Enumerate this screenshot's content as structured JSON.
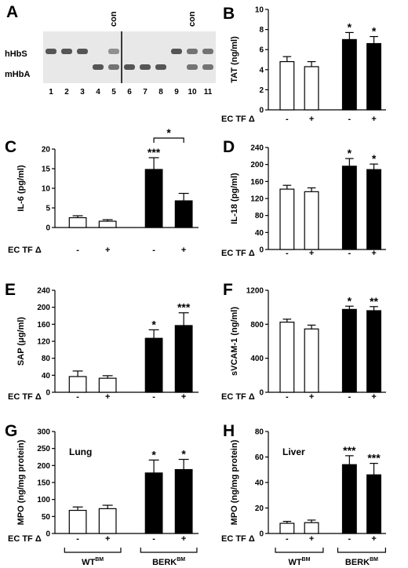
{
  "colors": {
    "wt_fill": "#ffffff",
    "berk_fill": "#000000",
    "axis": "#000000",
    "gel_bg": "#e8e8e8",
    "band": "#555555"
  },
  "gel": {
    "letter": "A",
    "label_top": "hHbS",
    "label_bottom": "mHbA",
    "con_labels": [
      "con",
      "con"
    ],
    "lanes": [
      "1",
      "2",
      "3",
      "4",
      "5",
      "6",
      "7",
      "8",
      "9",
      "10",
      "11"
    ],
    "band_pattern": [
      {
        "lane": "1",
        "hHbS": 1,
        "mHbA": 0
      },
      {
        "lane": "2",
        "hHbS": 1,
        "mHbA": 0
      },
      {
        "lane": "3",
        "hHbS": 1,
        "mHbA": 0
      },
      {
        "lane": "4",
        "hHbS": 0,
        "mHbA": 1
      },
      {
        "lane": "5",
        "hHbS": 0.6,
        "mHbA": 0.8
      },
      {
        "lane": "6",
        "hHbS": 0,
        "mHbA": 1
      },
      {
        "lane": "7",
        "hHbS": 0,
        "mHbA": 1
      },
      {
        "lane": "8",
        "hHbS": 0,
        "mHbA": 1
      },
      {
        "lane": "9",
        "hHbS": 1,
        "mHbA": 0
      },
      {
        "lane": "10",
        "hHbS": 0.8,
        "mHbA": 0.8
      },
      {
        "lane": "11",
        "hHbS": 0.8,
        "mHbA": 0.8
      }
    ]
  },
  "shared": {
    "condition_label": "EC TF Δ",
    "condition_ticks": [
      "-",
      "+",
      "-",
      "+"
    ],
    "groups": [
      {
        "name": "WT",
        "sup": "BM"
      },
      {
        "name": "BERK",
        "sup": "BM"
      }
    ]
  },
  "chart_data": [
    {
      "id": "B",
      "type": "bar",
      "ylabel": "TAT (ng/ml)",
      "ylim": [
        0,
        10
      ],
      "yticks": [
        "0",
        "2",
        "4",
        "6",
        "8",
        "10"
      ],
      "values": [
        4.8,
        4.3,
        7.0,
        6.6
      ],
      "errors": [
        0.5,
        0.5,
        0.7,
        0.7
      ],
      "significance": [
        "",
        "",
        "*",
        "*"
      ],
      "bracket": null,
      "title": ""
    },
    {
      "id": "C",
      "type": "bar",
      "ylabel": "IL-6 (pg/ml)",
      "ylim": [
        0,
        20
      ],
      "yticks": [
        "0",
        "5",
        "10",
        "15",
        "20"
      ],
      "values": [
        2.5,
        1.6,
        14.8,
        6.8
      ],
      "errors": [
        0.5,
        0.4,
        3.0,
        1.9
      ],
      "significance": [
        "",
        "",
        "***",
        ""
      ],
      "bracket": {
        "from": 2,
        "to": 3,
        "label": "*"
      },
      "title": ""
    },
    {
      "id": "D",
      "type": "bar",
      "ylabel": "IL-18 (pg/ml)",
      "ylim": [
        0,
        240
      ],
      "yticks": [
        "0",
        "40",
        "80",
        "120",
        "160",
        "200",
        "240"
      ],
      "values": [
        142,
        136,
        196,
        188
      ],
      "errors": [
        9,
        9,
        18,
        13
      ],
      "significance": [
        "",
        "",
        "*",
        "*"
      ],
      "bracket": null,
      "title": ""
    },
    {
      "id": "E",
      "type": "bar",
      "ylabel": "SAP (μg/ml)",
      "ylim": [
        0,
        240
      ],
      "yticks": [
        "0",
        "40",
        "80",
        "120",
        "160",
        "200",
        "240"
      ],
      "values": [
        37,
        33,
        127,
        157
      ],
      "errors": [
        13,
        6,
        20,
        30
      ],
      "significance": [
        "",
        "",
        "*",
        "***"
      ],
      "bracket": null,
      "title": ""
    },
    {
      "id": "F",
      "type": "bar",
      "ylabel": "sVCAM-1 (ng/ml)",
      "ylim": [
        0,
        1200
      ],
      "yticks": [
        "0",
        "400",
        "800",
        "1200"
      ],
      "values": [
        825,
        745,
        975,
        960
      ],
      "errors": [
        35,
        45,
        38,
        48
      ],
      "significance": [
        "",
        "",
        "*",
        "**"
      ],
      "bracket": null,
      "title": ""
    },
    {
      "id": "G",
      "type": "bar",
      "ylabel": "MPO (ng/mg protein)",
      "ylim": [
        0,
        300
      ],
      "yticks": [
        "0",
        "50",
        "100",
        "150",
        "200",
        "250",
        "300"
      ],
      "values": [
        68,
        73,
        178,
        188
      ],
      "errors": [
        10,
        10,
        38,
        30
      ],
      "significance": [
        "",
        "",
        "*",
        "*"
      ],
      "bracket": null,
      "title": "Lung"
    },
    {
      "id": "H",
      "type": "bar",
      "ylabel": "MPO (ng/mg protein)",
      "ylim": [
        0,
        80
      ],
      "yticks": [
        "0",
        "20",
        "40",
        "60",
        "80"
      ],
      "values": [
        8,
        8.5,
        54,
        46
      ],
      "errors": [
        1.5,
        2,
        7,
        9
      ],
      "significance": [
        "",
        "",
        "***",
        "***"
      ],
      "bracket": null,
      "title": "Liver"
    }
  ]
}
